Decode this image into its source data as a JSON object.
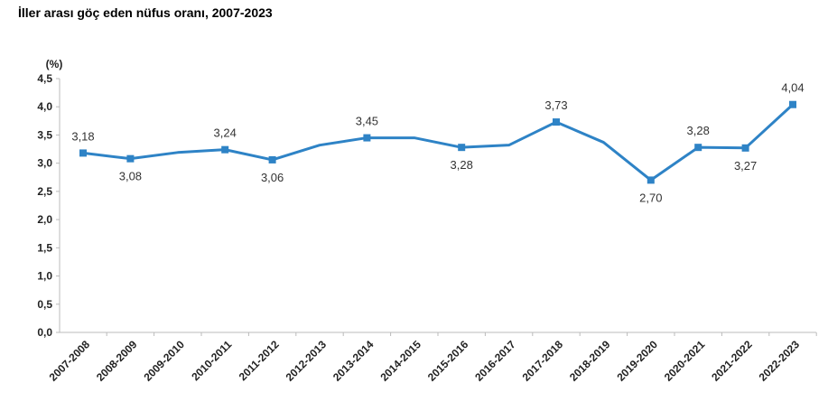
{
  "chart_data": {
    "type": "line",
    "title": "İller arası göç eden nüfus oranı, 2007-2023",
    "ylabel": "(%)",
    "xlabel": "",
    "ylim": [
      0,
      4.5
    ],
    "yticks": [
      "0,0",
      "0,5",
      "1,0",
      "1,5",
      "2,0",
      "2,5",
      "3,0",
      "3,5",
      "4,0",
      "4,5"
    ],
    "grid": false,
    "color": "#2E83C6",
    "categories": [
      "2007-2008",
      "2008-2009",
      "2009-2010",
      "2010-2011",
      "2011-2012",
      "2012-2013",
      "2013-2014",
      "2014-2015",
      "2015-2016",
      "2016-2017",
      "2017-2018",
      "2018-2019",
      "2019-2020",
      "2020-2021",
      "2021-2022",
      "2022-2023"
    ],
    "series": [
      {
        "name": "Göç eden nüfus oranı",
        "values": [
          3.18,
          3.08,
          3.19,
          3.24,
          3.06,
          3.32,
          3.45,
          3.45,
          3.28,
          3.32,
          3.73,
          3.37,
          2.7,
          3.28,
          3.27,
          4.04
        ]
      }
    ],
    "data_labels": [
      {
        "index": 0,
        "text": "3,18",
        "pos": "above"
      },
      {
        "index": 1,
        "text": "3,08",
        "pos": "below"
      },
      {
        "index": 3,
        "text": "3,24",
        "pos": "above"
      },
      {
        "index": 4,
        "text": "3,06",
        "pos": "below"
      },
      {
        "index": 6,
        "text": "3,45",
        "pos": "above"
      },
      {
        "index": 8,
        "text": "3,28",
        "pos": "below"
      },
      {
        "index": 10,
        "text": "3,73",
        "pos": "above"
      },
      {
        "index": 12,
        "text": "2,70",
        "pos": "below"
      },
      {
        "index": 13,
        "text": "3,28",
        "pos": "above"
      },
      {
        "index": 14,
        "text": "3,27",
        "pos": "below"
      },
      {
        "index": 15,
        "text": "4,04",
        "pos": "above"
      }
    ]
  }
}
